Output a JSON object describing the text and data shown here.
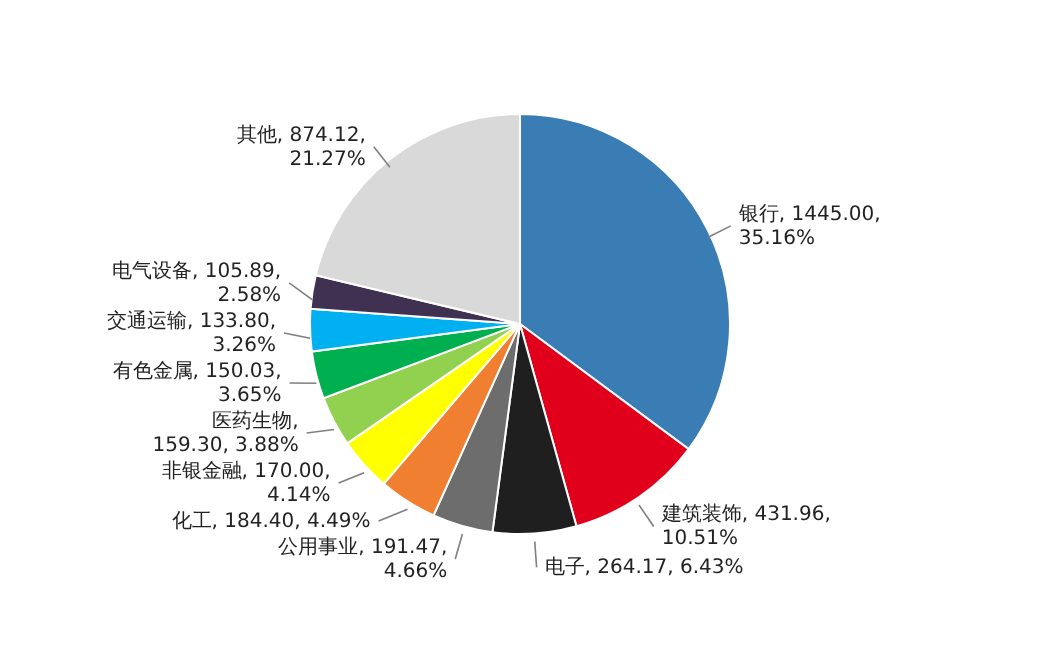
{
  "chart_data": {
    "type": "pie",
    "categories": [
      "银行",
      "建筑装饰",
      "电子",
      "公用事业",
      "化工",
      "非银金融",
      "医药生物",
      "有色金属",
      "交通运输",
      "电气设备",
      "其他"
    ],
    "values": [
      1445.0,
      431.96,
      264.17,
      191.47,
      184.4,
      170.0,
      159.3,
      150.03,
      133.8,
      105.89,
      874.12
    ],
    "colors": [
      "#3a7db5",
      "#e0001b",
      "#1f1f1f",
      "#6d6d6d",
      "#f07f32",
      "#ffff00",
      "#92d050",
      "#00b050",
      "#00b0f0",
      "#403152",
      "#d9d9d9"
    ],
    "value_labels": [
      ", 1445.00,\n35.16%",
      ", 431.96,\n10.51%",
      ", 264.17, 6.43%",
      ", 191.47,\n4.66%",
      ", 184.40, 4.49%",
      ", 170.00,\n4.14%",
      ",\n159.30, 3.88%",
      ", 150.03,\n3.65%",
      ", 133.80,\n3.26%",
      ", 105.89,\n2.58%",
      ", 874.12,\n21.27%"
    ]
  }
}
